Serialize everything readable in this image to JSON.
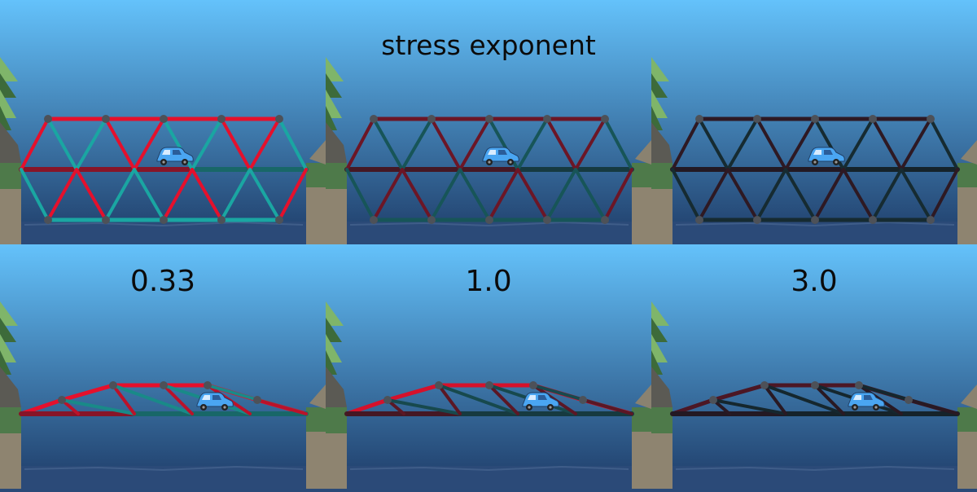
{
  "title": "stress exponent",
  "columns": [
    {
      "label": "0.33",
      "exponent": 0.33
    },
    {
      "label": "1.0",
      "exponent": 1.0
    },
    {
      "label": "3.0",
      "exponent": 3.0
    }
  ],
  "rows": [
    {
      "bridge": "truss"
    },
    {
      "bridge": "arch"
    }
  ],
  "icons": {
    "vehicle": "car-icon",
    "scenery": "pine-tree-icon"
  },
  "colors": {
    "sky_top": "#64c2fb",
    "sky_bottom": "#1e3b67",
    "water": "#2b4a78",
    "tension": "#e5102c",
    "compression": "#1aa6a2",
    "neutral": "#151a22",
    "joint": "#4d5158",
    "car_body": "#4aa6f2",
    "cliff": "#8e8470",
    "grass": "#4e7a4a"
  }
}
